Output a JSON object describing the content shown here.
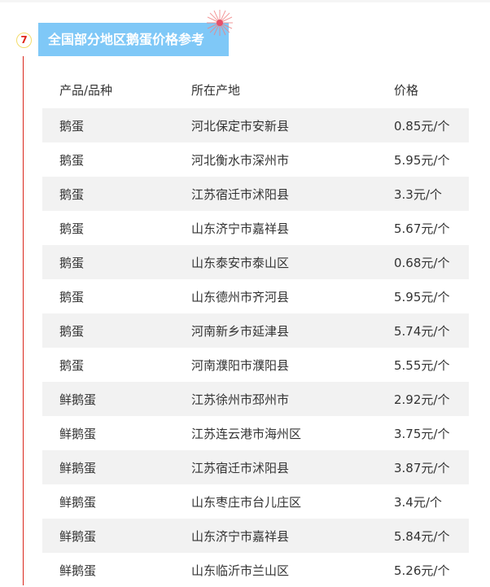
{
  "section": {
    "number": "7",
    "title": "全国部分地区鹅蛋价格参考"
  },
  "table": {
    "headers": [
      "产品/品种",
      "所在产地",
      "价格"
    ],
    "rows": [
      [
        "鹅蛋",
        "河北保定市安新县",
        "0.85元/个"
      ],
      [
        "鹅蛋",
        "河北衡水市深州市",
        "5.95元/个"
      ],
      [
        "鹅蛋",
        "江苏宿迁市沭阳县",
        "3.3元/个"
      ],
      [
        "鹅蛋",
        "山东济宁市嘉祥县",
        "5.67元/个"
      ],
      [
        "鹅蛋",
        "山东泰安市泰山区",
        "0.68元/个"
      ],
      [
        "鹅蛋",
        "山东德州市齐河县",
        "5.95元/个"
      ],
      [
        "鹅蛋",
        "河南新乡市延津县",
        "5.74元/个"
      ],
      [
        "鹅蛋",
        "河南濮阳市濮阳县",
        "5.55元/个"
      ],
      [
        "鲜鹅蛋",
        "江苏徐州市邳州市",
        "2.92元/个"
      ],
      [
        "鲜鹅蛋",
        "江苏连云港市海州区",
        "3.75元/个"
      ],
      [
        "鲜鹅蛋",
        "江苏宿迁市沭阳县",
        "3.87元/个"
      ],
      [
        "鲜鹅蛋",
        "山东枣庄市台儿庄区",
        "3.4元/个"
      ],
      [
        "鲜鹅蛋",
        "山东济宁市嘉祥县",
        "5.84元/个"
      ],
      [
        "鲜鹅蛋",
        "山东临沂市兰山区",
        "5.26元/个"
      ]
    ]
  },
  "colors": {
    "title_bg": "#7fc8f7",
    "accent_red": "#d9261c",
    "row_alt": "#f2f2f2"
  }
}
